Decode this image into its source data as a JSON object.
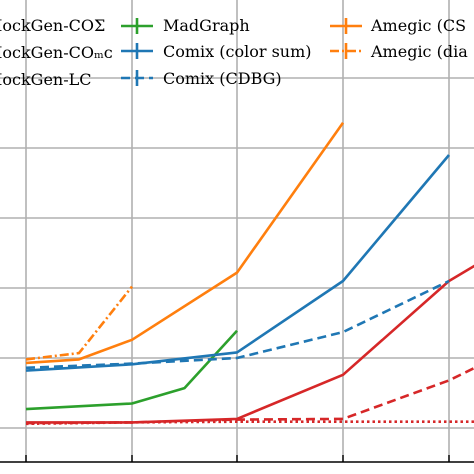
{
  "chart_data": {
    "type": "line",
    "grid": true,
    "legend_position": "top",
    "x_categories": 5,
    "series": [
      {
        "name": "MockGen-COΣ",
        "color": "#d62728",
        "style": "solid",
        "points": [
          [
            0,
            0.08
          ],
          [
            1,
            0.08
          ],
          [
            2,
            0.13
          ],
          [
            3,
            0.76
          ],
          [
            4,
            2.1
          ],
          [
            4.5,
            2.55
          ]
        ]
      },
      {
        "name": "MockGen-COₘᴄ",
        "color": "#d62728",
        "style": "dashed",
        "points": [
          [
            0,
            0.07
          ],
          [
            1,
            0.08
          ],
          [
            2,
            0.12
          ],
          [
            3,
            0.13
          ],
          [
            4,
            0.68
          ],
          [
            4.5,
            1.05
          ]
        ]
      },
      {
        "name": "MockGen-LC",
        "color": "#d62728",
        "style": "dotted",
        "points": [
          [
            0,
            0.06
          ],
          [
            1,
            0.08
          ],
          [
            2,
            0.09
          ],
          [
            3,
            0.09
          ],
          [
            4,
            0.09
          ],
          [
            4.5,
            0.09
          ]
        ]
      },
      {
        "name": "MadGraph",
        "color": "#2ca02c",
        "style": "solid",
        "points": [
          [
            0,
            0.27
          ],
          [
            1,
            0.35
          ],
          [
            1.5,
            0.57
          ],
          [
            2,
            1.39
          ]
        ]
      },
      {
        "name": "Comix (color sum)",
        "color": "#1f77b4",
        "style": "solid",
        "points": [
          [
            0,
            0.82
          ],
          [
            1,
            0.91
          ],
          [
            2,
            1.08
          ],
          [
            3,
            2.1
          ],
          [
            4,
            3.9
          ]
        ]
      },
      {
        "name": "Comix (CDBG)",
        "color": "#1f77b4",
        "style": "dashed",
        "points": [
          [
            0,
            0.86
          ],
          [
            1,
            0.92
          ],
          [
            2,
            1.0
          ],
          [
            3,
            1.37
          ],
          [
            4,
            2.1
          ]
        ]
      },
      {
        "name": "Amegic (CS",
        "color": "#ff7f0e",
        "style": "solid",
        "points": [
          [
            0,
            0.93
          ],
          [
            0.5,
            0.98
          ],
          [
            1,
            1.26
          ],
          [
            2,
            2.22
          ],
          [
            3,
            4.36
          ]
        ]
      },
      {
        "name": "Amegic (dia",
        "color": "#ff7f0e",
        "style": "dashdot",
        "points": [
          [
            0,
            0.98
          ],
          [
            0.5,
            1.07
          ],
          [
            1,
            2.02
          ]
        ]
      }
    ]
  },
  "legend": {
    "col1": [
      "MockGen-COΣ",
      "MockGen-COₘᴄ",
      "MockGen-LC"
    ],
    "col2": [
      "MadGraph",
      "Comix (color sum)",
      "Comix (CDBG)"
    ],
    "col3": [
      "Amegic (CS",
      "Amegic (dia"
    ]
  }
}
